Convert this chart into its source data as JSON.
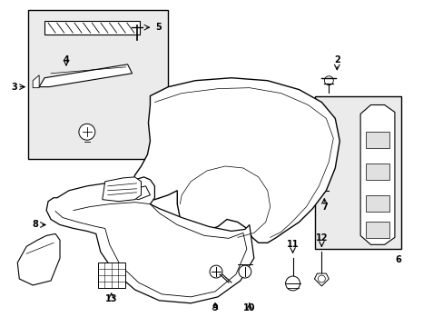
{
  "bg_color": "#ffffff",
  "line_color": "#000000",
  "box_fill": "#ebebeb",
  "fig_width": 4.89,
  "fig_height": 3.6,
  "dpi": 100
}
